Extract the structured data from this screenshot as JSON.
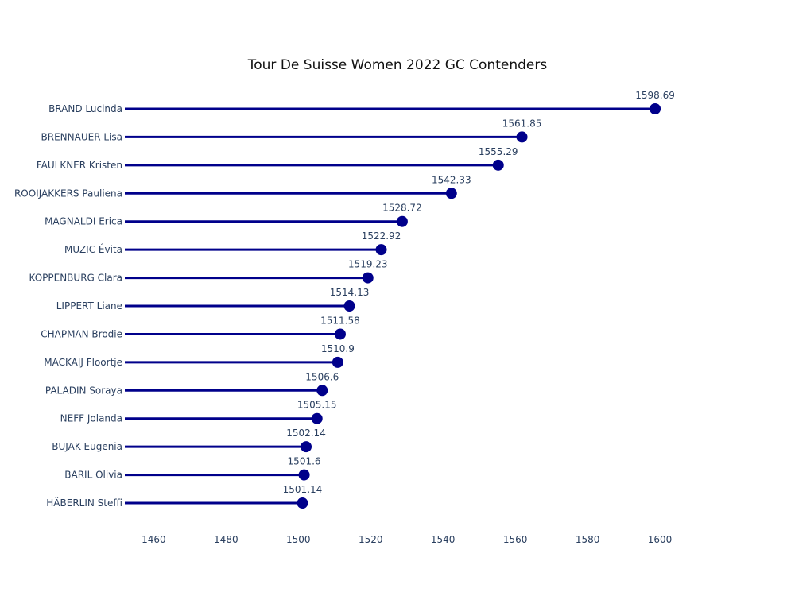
{
  "chart_data": {
    "type": "lollipop",
    "title": "Tour De Suisse Women 2022 GC Contenders",
    "xlabel": "",
    "ylabel": "",
    "xlim": [
      1452,
      1620
    ],
    "x_ticks": [
      1460,
      1480,
      1500,
      1520,
      1540,
      1560,
      1580,
      1600
    ],
    "grid": false,
    "line_color": "#00008b",
    "marker_color": "#00008b",
    "text_color": "#2a3f5f",
    "categories": [
      "BRAND Lucinda",
      "BRENNAUER Lisa",
      "FAULKNER Kristen",
      "ROOIJAKKERS Pauliena",
      "MAGNALDI Erica",
      "MUZIC Évita",
      "KOPPENBURG Clara",
      "LIPPERT Liane",
      "CHAPMAN Brodie",
      "MACKAIJ Floortje",
      "PALADIN Soraya",
      "NEFF Jolanda",
      "BUJAK Eugenia",
      "BARIL Olivia",
      "HÄBERLIN Steffi"
    ],
    "values": [
      1598.69,
      1561.85,
      1555.29,
      1542.33,
      1528.72,
      1522.92,
      1519.23,
      1514.13,
      1511.58,
      1510.9,
      1506.6,
      1505.15,
      1502.14,
      1501.6,
      1501.14
    ],
    "value_labels": [
      "1598.69",
      "1561.85",
      "1555.29",
      "1542.33",
      "1528.72",
      "1522.92",
      "1519.23",
      "1514.13",
      "1511.58",
      "1510.9",
      "1506.6",
      "1505.15",
      "1502.14",
      "1501.6",
      "1501.14"
    ]
  }
}
